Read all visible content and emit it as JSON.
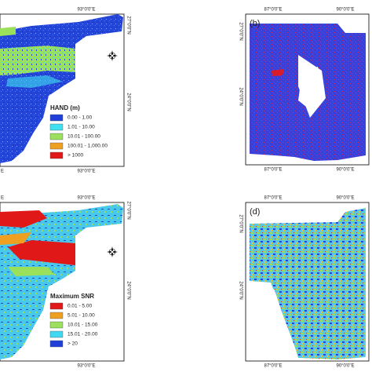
{
  "panels": [
    {
      "top_ticks": [
        "93°0'0\"E"
      ],
      "bottom_ticks": [
        "E",
        "93°0'0\"E"
      ],
      "side_ticks": [
        "27°0'0\"N",
        "24°0'0\"N"
      ],
      "legend": {
        "title": "HAND (m)",
        "items": [
          {
            "label": "0.00 - 1.00",
            "color": "#1f3fd8"
          },
          {
            "label": "1.01 - 10.00",
            "color": "#3fe0f0"
          },
          {
            "label": "10.01 - 100.00",
            "color": "#9be05a"
          },
          {
            "label": "100.01 - 1,000.00",
            "color": "#f0a020"
          },
          {
            "label": "> 1000",
            "color": "#e01818"
          }
        ]
      }
    },
    {
      "label": "(b)",
      "top_ticks": [
        "87°0'0\"E",
        "90°0'0\"E"
      ],
      "bottom_ticks": [
        "87°0'0\"E",
        "90°0'0\"E"
      ],
      "side_ticks": [
        "27°0'0\"N",
        "24°0'0\"N"
      ]
    },
    {
      "top_ticks": [
        "E",
        "93°0'0\"E"
      ],
      "bottom_ticks": [
        "93°0'0\"E"
      ],
      "side_ticks": [
        "27°0'0\"N",
        "24°0'0\"N"
      ],
      "legend": {
        "title": "Maximum SNR",
        "items": [
          {
            "label": "0.01 - 5.00",
            "color": "#e01818"
          },
          {
            "label": "5.01 - 10.00",
            "color": "#f0a020"
          },
          {
            "label": "10.01 - 15.00",
            "color": "#9be05a"
          },
          {
            "label": "15.01 - 20.00",
            "color": "#3fd8f0"
          },
          {
            "label": "> 20",
            "color": "#1f3fd8"
          }
        ]
      }
    },
    {
      "label": "(d)",
      "top_ticks": [
        "87°0'0\"E",
        "90°0'0\"E"
      ],
      "bottom_ticks": [
        "87°0'0\"E",
        "90°0'0\"E"
      ],
      "side_ticks": [
        "27°0'0\"N",
        "24°0'0\"N"
      ]
    }
  ]
}
